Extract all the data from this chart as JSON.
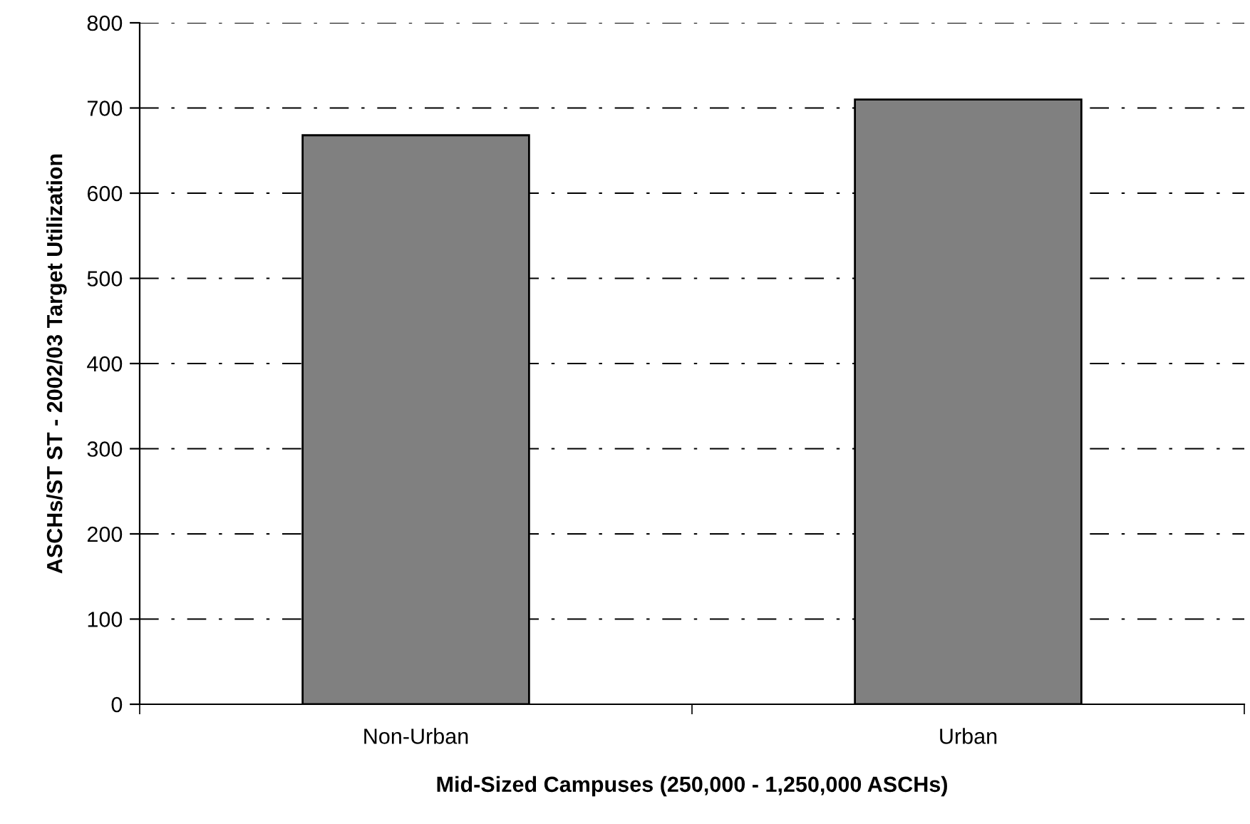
{
  "chart_data": {
    "type": "bar",
    "xlabel": "Mid-Sized Campuses (250,000 - 1,250,000 ASCHs)",
    "ylabel": "ASCHs/ST ST - 2002/03 Target Utilization",
    "categories": [
      "Non-Urban",
      "Urban"
    ],
    "series": [
      {
        "color": "#808080",
        "values": [
          668,
          710
        ]
      }
    ],
    "ylim": [
      0,
      800
    ],
    "yticks": [
      0,
      100,
      200,
      300,
      400,
      500,
      600,
      700,
      800
    ],
    "grid": "y",
    "legend": false
  }
}
